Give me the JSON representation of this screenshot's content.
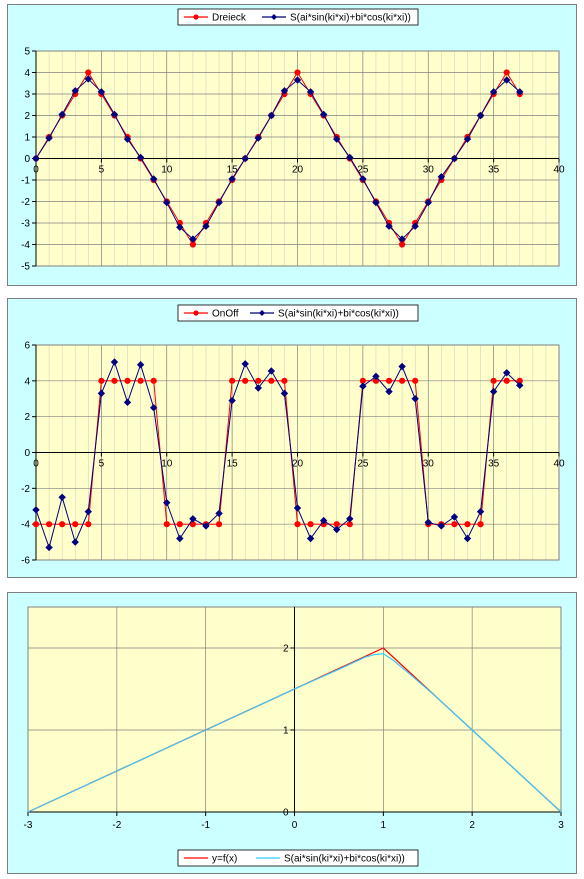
{
  "chart_data": [
    {
      "type": "line",
      "title": "",
      "xlim": [
        0,
        40
      ],
      "ylim": [
        -5,
        5
      ],
      "xticks": [
        0,
        5,
        10,
        15,
        20,
        25,
        30,
        35,
        40
      ],
      "yticks": [
        -5,
        -4,
        -3,
        -2,
        -1,
        0,
        1,
        2,
        3,
        4,
        5
      ],
      "grid": true,
      "legend": "top-center",
      "series": [
        {
          "name": "Dreieck",
          "color": "#ff0000",
          "marker": "circle",
          "x": [
            0,
            1,
            2,
            3,
            4,
            5,
            6,
            7,
            8,
            9,
            10,
            11,
            12,
            13,
            14,
            15,
            16,
            17,
            18,
            19,
            20,
            21,
            22,
            23,
            24,
            25,
            26,
            27,
            28,
            29,
            30,
            31,
            32,
            33,
            34,
            35,
            36,
            37
          ],
          "y": [
            0,
            1,
            2,
            3,
            4,
            3,
            2,
            1,
            0,
            -1,
            -2,
            -3,
            -4,
            -3,
            -2,
            -1,
            0,
            1,
            2,
            3,
            4,
            3,
            2,
            1,
            0,
            -1,
            -2,
            -3,
            -4,
            -3,
            -2,
            -1,
            0,
            1,
            2,
            3,
            4,
            3
          ]
        },
        {
          "name": "S(ai*sin(ki*xi)+bi*cos(ki*xi))",
          "color": "#000080",
          "marker": "diamond",
          "x": [
            0,
            1,
            2,
            3,
            4,
            5,
            6,
            7,
            8,
            9,
            10,
            11,
            12,
            13,
            14,
            15,
            16,
            17,
            18,
            19,
            20,
            21,
            22,
            23,
            24,
            25,
            26,
            27,
            28,
            29,
            30,
            31,
            32,
            33,
            34,
            35,
            36,
            37
          ],
          "y": [
            0,
            0.95,
            2.05,
            3.15,
            3.7,
            3.1,
            2.05,
            0.9,
            0.05,
            -0.95,
            -2.05,
            -3.2,
            -3.75,
            -3.15,
            -2.05,
            -0.95,
            0,
            0.95,
            2.0,
            3.15,
            3.65,
            3.1,
            2.05,
            0.9,
            0.05,
            -0.95,
            -2.05,
            -3.15,
            -3.75,
            -3.15,
            -2.05,
            -0.85,
            0,
            0.9,
            2.0,
            3.1,
            3.65,
            3.1
          ]
        }
      ]
    },
    {
      "type": "line",
      "title": "",
      "xlim": [
        0,
        40
      ],
      "ylim": [
        -6,
        6
      ],
      "xticks": [
        0,
        5,
        10,
        15,
        20,
        25,
        30,
        35,
        40
      ],
      "yticks": [
        -6,
        -4,
        -2,
        0,
        2,
        4,
        6
      ],
      "grid": true,
      "legend": "top-center",
      "series": [
        {
          "name": "OnOff",
          "color": "#ff0000",
          "marker": "circle",
          "x": [
            0,
            1,
            2,
            3,
            4,
            5,
            6,
            7,
            8,
            9,
            10,
            11,
            12,
            13,
            14,
            15,
            16,
            17,
            18,
            19,
            20,
            21,
            22,
            23,
            24,
            25,
            26,
            27,
            28,
            29,
            30,
            31,
            32,
            33,
            34,
            35,
            36,
            37
          ],
          "y": [
            -4,
            -4,
            -4,
            -4,
            -4,
            4,
            4,
            4,
            4,
            4,
            -4,
            -4,
            -4,
            -4,
            -4,
            4,
            4,
            4,
            4,
            4,
            -4,
            -4,
            -4,
            -4,
            -4,
            4,
            4,
            4,
            4,
            4,
            -4,
            -4,
            -4,
            -4,
            -4,
            4,
            4,
            4
          ]
        },
        {
          "name": "S(ai*sin(ki*xi)+bi*cos(ki*xi))",
          "color": "#000080",
          "marker": "diamond",
          "x": [
            0,
            1,
            2,
            3,
            4,
            5,
            6,
            7,
            8,
            9,
            10,
            11,
            12,
            13,
            14,
            15,
            16,
            17,
            18,
            19,
            20,
            21,
            22,
            23,
            24,
            25,
            26,
            27,
            28,
            29,
            30,
            31,
            32,
            33,
            34,
            35,
            36,
            37
          ],
          "y": [
            -3.2,
            -5.3,
            -2.5,
            -5.0,
            -3.3,
            3.3,
            5.05,
            2.8,
            4.9,
            2.5,
            -2.8,
            -4.8,
            -3.7,
            -4.1,
            -3.4,
            2.9,
            4.95,
            3.6,
            4.55,
            3.3,
            -3.1,
            -4.8,
            -3.8,
            -4.3,
            -3.7,
            3.7,
            4.25,
            3.4,
            4.8,
            3.0,
            -3.9,
            -4.1,
            -3.6,
            -4.8,
            -3.3,
            3.4,
            4.45,
            3.75
          ]
        }
      ]
    },
    {
      "type": "line",
      "title": "",
      "xlim": [
        -3,
        3
      ],
      "ylim": [
        0,
        2.5
      ],
      "xticks": [
        -3,
        -2,
        -1,
        0,
        1,
        2,
        3
      ],
      "yticks": [
        0,
        1,
        2
      ],
      "grid": true,
      "legend": "bottom-center",
      "series": [
        {
          "name": "y=f(x)",
          "color": "#ff0000",
          "x": [
            -3,
            1,
            3
          ],
          "y": [
            0,
            2,
            0
          ]
        },
        {
          "name": "S(ai*sin(ki*xi)+bi*cos(ki*xi))",
          "color": "#33ccff",
          "x": [
            -3,
            -2,
            -1,
            0,
            0.5,
            0.8,
            0.9,
            1.0,
            1.1,
            1.3,
            1.6,
            2,
            2.5,
            3
          ],
          "y": [
            0,
            0.5,
            1.0,
            1.5,
            1.74,
            1.89,
            1.92,
            1.93,
            1.86,
            1.68,
            1.4,
            1.0,
            0.5,
            0
          ]
        }
      ]
    }
  ]
}
